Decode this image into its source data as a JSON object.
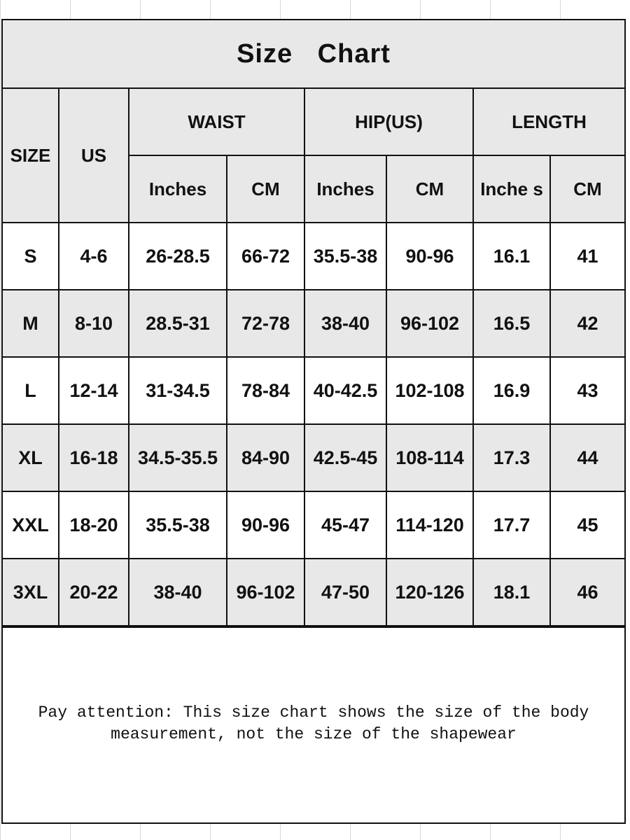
{
  "title": "Size   Chart",
  "headers": {
    "size": "SIZE",
    "us": "US",
    "waist": "WAIST",
    "hip": "HIP(US)",
    "length": "LENGTH",
    "waist_inches": "Inches",
    "waist_cm": "CM",
    "hip_inches": "Inches",
    "hip_cm": "CM",
    "length_inches": "Inche s",
    "length_cm": "CM"
  },
  "rows": [
    {
      "size": "S",
      "us": "4-6",
      "waist_in": "26-28.5",
      "waist_cm": "66-72",
      "hip_in": "35.5-38",
      "hip_cm": "90-96",
      "len_in": "16.1",
      "len_cm": "41"
    },
    {
      "size": "M",
      "us": "8-10",
      "waist_in": "28.5-31",
      "waist_cm": "72-78",
      "hip_in": "38-40",
      "hip_cm": "96-102",
      "len_in": "16.5",
      "len_cm": "42"
    },
    {
      "size": "L",
      "us": "12-14",
      "waist_in": "31-34.5",
      "waist_cm": "78-84",
      "hip_in": "40-42.5",
      "hip_cm": "102-108",
      "len_in": "16.9",
      "len_cm": "43"
    },
    {
      "size": "XL",
      "us": "16-18",
      "waist_in": "34.5-35.5",
      "waist_cm": "84-90",
      "hip_in": "42.5-45",
      "hip_cm": "108-114",
      "len_in": "17.3",
      "len_cm": "44"
    },
    {
      "size": "XXL",
      "us": "18-20",
      "waist_in": "35.5-38",
      "waist_cm": "90-96",
      "hip_in": "45-47",
      "hip_cm": "114-120",
      "len_in": "17.7",
      "len_cm": "45"
    },
    {
      "size": "3XL",
      "us": "20-22",
      "waist_in": "38-40",
      "waist_cm": "96-102",
      "hip_in": "47-50",
      "hip_cm": "120-126",
      "len_in": "18.1",
      "len_cm": "46"
    }
  ],
  "note": "Pay attention: This size chart shows the size of the body measurement, not the size of the shapewear",
  "colors": {
    "header_bg": "#e8e8e8",
    "alt_row_bg": "#e8e8e8",
    "border": "#111111"
  }
}
